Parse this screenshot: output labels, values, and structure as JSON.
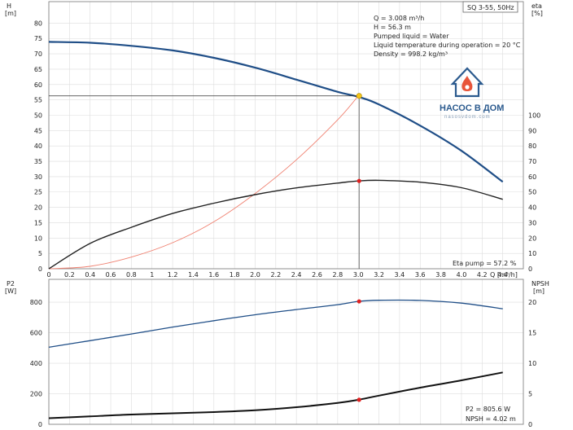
{
  "model_label": "SQ 3-55, 50Hz",
  "info_lines": [
    "Q = 3.008 m³/h",
    "H = 56.3 m",
    "Pumped liquid = Water",
    "Liquid temperature during operation = 20 °C",
    "Density = 998.2 kg/m³"
  ],
  "logo": {
    "text": "НАСОС В ДОМ",
    "sub": "nasosvdom.com"
  },
  "colors": {
    "head": "#1f4e87",
    "eta": "#222222",
    "system": "#f08070",
    "marker": "#e02020",
    "duty_point": "#f5c518",
    "p2": "#1f4e87",
    "npsh": "#111111",
    "grid": "#dddddd"
  },
  "chart_data": [
    {
      "type": "line",
      "xlabel": "Q [m³/h]",
      "ylabel_left": "H\n[m]",
      "ylabel_right": "eta\n[%]",
      "xlim": [
        0,
        4.6
      ],
      "ylim": [
        0,
        87
      ],
      "xticks": [
        0,
        0.2,
        0.4,
        0.6,
        0.8,
        1.0,
        1.2,
        1.4,
        1.6,
        1.8,
        2.0,
        2.2,
        2.4,
        2.6,
        2.8,
        3.0,
        3.2,
        3.4,
        3.6,
        3.8,
        4.0,
        4.2,
        4.4
      ],
      "yticks_left": [
        0,
        5,
        10,
        15,
        20,
        25,
        30,
        35,
        40,
        45,
        50,
        55,
        60,
        65,
        70,
        75,
        80
      ],
      "yticks_right": [
        0,
        10,
        20,
        30,
        40,
        50,
        60,
        70,
        80,
        90,
        100
      ],
      "eta_scale": {
        "eta_per_H_unit": 2
      },
      "series": [
        {
          "key": "head",
          "x": [
            0,
            0.4,
            0.8,
            1.2,
            1.6,
            2.0,
            2.4,
            2.8,
            3.0,
            3.2,
            3.6,
            4.0,
            4.4
          ],
          "y": [
            73.9,
            73.6,
            72.6,
            71.1,
            68.7,
            65.5,
            61.6,
            57.6,
            56.0,
            53.5,
            46.6,
            38.4,
            28.3
          ]
        },
        {
          "key": "eta",
          "axis": "right",
          "x": [
            0,
            0.4,
            0.8,
            1.2,
            1.6,
            2.0,
            2.4,
            2.8,
            3.0,
            3.2,
            3.6,
            4.0,
            4.4
          ],
          "y": [
            0,
            16.5,
            27,
            36,
            42.7,
            48.3,
            52.7,
            55.8,
            57.2,
            57.6,
            56.4,
            52.8,
            45.2
          ]
        },
        {
          "key": "system",
          "x": [
            0,
            0.4,
            0.8,
            1.2,
            1.6,
            2.0,
            2.4,
            2.8,
            3.0
          ],
          "y": [
            0,
            0.8,
            3.8,
            8.5,
            15.3,
            24.5,
            35.5,
            48.5,
            56.3
          ]
        }
      ],
      "duty_point": {
        "x": 3.008,
        "y": 56.3
      },
      "eta_marker": {
        "x": 3.008,
        "eta": 57.2
      },
      "annotation": "Eta pump = 57.2 %"
    },
    {
      "type": "line",
      "xlabel": "",
      "ylabel_left": "P2\n[W]",
      "ylabel_right": "NPSH\n[m]",
      "xlim": [
        0,
        4.6
      ],
      "ylim": [
        0,
        950
      ],
      "yticks_left": [
        0,
        200,
        400,
        600,
        800
      ],
      "yticks_right": [
        0,
        5,
        10,
        15,
        20
      ],
      "npsh_scale": {
        "W_per_m": 40
      },
      "series": [
        {
          "key": "p2",
          "x": [
            0,
            0.4,
            0.8,
            1.2,
            1.6,
            2.0,
            2.4,
            2.8,
            3.0,
            3.2,
            3.6,
            4.0,
            4.4
          ],
          "y": [
            505,
            548,
            592,
            637,
            679,
            718,
            752,
            784,
            805.6,
            813,
            812,
            794,
            757
          ]
        },
        {
          "key": "npsh",
          "axis": "right",
          "x": [
            0,
            0.4,
            0.8,
            1.2,
            1.6,
            2.0,
            2.4,
            2.8,
            3.0,
            3.2,
            3.6,
            4.0,
            4.4
          ],
          "y": [
            1.0,
            1.3,
            1.6,
            1.8,
            2.0,
            2.3,
            2.8,
            3.5,
            4.02,
            4.7,
            6.0,
            7.2,
            8.5
          ]
        }
      ],
      "p2_marker": {
        "x": 3.008,
        "y": 805.6
      },
      "npsh_marker": {
        "x": 3.008,
        "y": 4.02
      },
      "annotations": [
        "P2 = 805.6 W",
        "NPSH = 4.02 m"
      ]
    }
  ]
}
